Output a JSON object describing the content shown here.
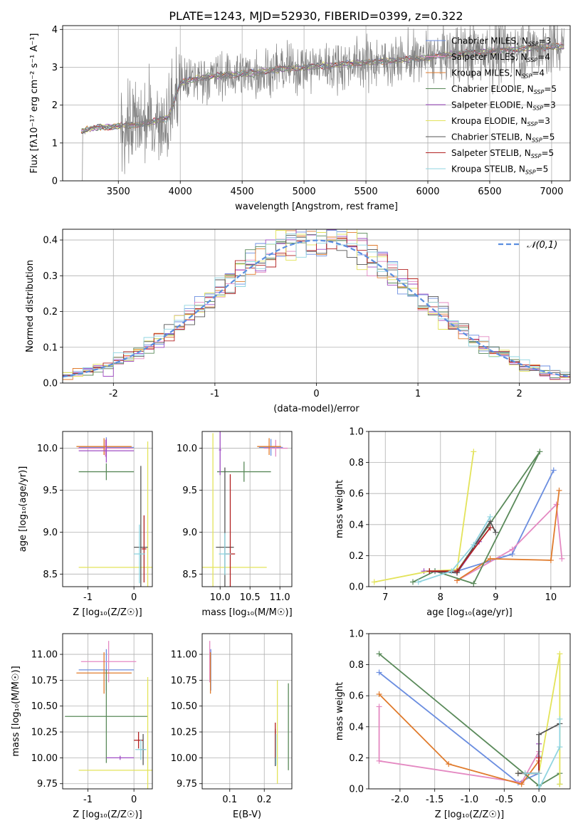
{
  "figure": {
    "title": "PLATE=1243, MJD=52930, FIBERID=0399, z=0.322",
    "models": [
      {
        "name": "Chabrier MILES, N_SSP=3",
        "color": "#6b8ee0"
      },
      {
        "name": "Salpeter MILES, N_SSP=4",
        "color": "#e489c2"
      },
      {
        "name": "Kroupa MILES, N_SSP=4",
        "color": "#e07b2c"
      },
      {
        "name": "Chabrier ELODIE, N_SSP=5",
        "color": "#5a8a5a"
      },
      {
        "name": "Salpeter ELODIE, N_SSP=3",
        "color": "#a04dc4"
      },
      {
        "name": "Kroupa ELODIE, N_SSP=3",
        "color": "#e3e35a"
      },
      {
        "name": "Chabrier STELIB, N_SSP=5",
        "color": "#555555"
      },
      {
        "name": "Salpeter STELIB, N_SSP=5",
        "color": "#b22222"
      },
      {
        "name": "Kroupa STELIB, N_SSP=5",
        "color": "#8fd4e0"
      }
    ]
  },
  "chart_data": [
    {
      "type": "line",
      "id": "spectrum",
      "xlabel": "wavelength [Angstrom, rest frame]",
      "ylabel": "Flux [fλ10⁻¹⁷ erg cm⁻² s⁻¹ A⁻¹]",
      "xlim": [
        3050,
        7150
      ],
      "ylim": [
        0,
        4.1
      ],
      "xticks": [
        3500,
        4000,
        4500,
        5000,
        5500,
        6000,
        6500,
        7000
      ],
      "yticks": [
        0,
        1,
        2,
        3,
        4
      ],
      "data_color": "#808080",
      "continuum": {
        "x": [
          3200,
          3300,
          3400,
          3500,
          3700,
          3900,
          4000,
          4200,
          4400,
          4600,
          4800,
          5000,
          5200,
          5400,
          5600,
          5800,
          6000,
          6200,
          6400,
          6600,
          6800,
          7000,
          7100
        ],
        "y": [
          1.3,
          1.4,
          1.42,
          1.45,
          1.5,
          1.65,
          2.6,
          2.75,
          2.8,
          2.85,
          2.95,
          3.0,
          3.05,
          3.1,
          3.15,
          3.2,
          3.25,
          3.35,
          3.4,
          3.45,
          3.5,
          3.55,
          3.55
        ]
      },
      "legend": "upper right"
    },
    {
      "type": "step",
      "id": "residuals",
      "xlabel": "(data-model)/error",
      "ylabel": "Normed distribution",
      "xlim": [
        -2.5,
        2.5
      ],
      "ylim": [
        0,
        0.43
      ],
      "xticks": [
        -2,
        -1,
        0,
        1,
        2
      ],
      "yticks": [
        0.0,
        0.1,
        0.2,
        0.3,
        0.4
      ],
      "reference": {
        "name": "𝒩(0,1)",
        "color": "#5b8ee0",
        "style": "dashed"
      },
      "bin_width": 0.1,
      "legend": "upper right"
    },
    {
      "type": "errorbar",
      "id": "age-vs-Z",
      "xlabel": "Z [log₁₀(Z/Z☉)]",
      "ylabel": "age  [log₁₀(age/yr)]",
      "xlim": [
        -1.55,
        0.4
      ],
      "ylim": [
        8.35,
        10.2
      ],
      "xticks": [
        -1,
        0
      ],
      "yticks": [
        8.5,
        9.0,
        9.5,
        10.0
      ],
      "points": [
        {
          "series": 0,
          "x": -0.6,
          "y": 10.01,
          "xerr": 0.6,
          "yerr": 0.12
        },
        {
          "series": 1,
          "x": -0.62,
          "y": 10.0,
          "xerr": 0.6,
          "yerr": 0.1
        },
        {
          "series": 2,
          "x": -0.65,
          "y": 10.02,
          "xerr": 0.6,
          "yerr": 0.1
        },
        {
          "series": 3,
          "x": -0.6,
          "y": 9.72,
          "xerr": 0.6,
          "yerr": 0.1
        },
        {
          "series": 4,
          "x": -0.6,
          "y": 9.97,
          "xerr": 0.6,
          "yerr": 0.14
        },
        {
          "series": 5,
          "x": 0.3,
          "y": 8.58,
          "xerr": 1.5,
          "yerr": 1.5
        },
        {
          "series": 6,
          "x": 0.15,
          "y": 8.82,
          "xerr": 0.15,
          "yerr": 0.97
        },
        {
          "series": 7,
          "x": 0.22,
          "y": 8.8,
          "xerr": 0.05,
          "yerr": 0.4
        },
        {
          "series": 8,
          "x": 0.12,
          "y": 8.74,
          "xerr": 0.12,
          "yerr": 0.35
        }
      ]
    },
    {
      "type": "errorbar",
      "id": "age-vs-mass",
      "xlabel": "mass [log₁₀(M/M☉)]",
      "ylabel": "",
      "xlim": [
        9.7,
        11.2
      ],
      "ylim": [
        8.35,
        10.2
      ],
      "xticks": [
        10.0,
        10.5,
        11.0
      ],
      "yticks": [
        8.5,
        9.0,
        9.5,
        10.0
      ],
      "points": [
        {
          "series": 0,
          "x": 10.85,
          "y": 10.01,
          "xerr": 0.2,
          "yerr": 0.1
        },
        {
          "series": 1,
          "x": 10.93,
          "y": 10.0,
          "xerr": 0.2,
          "yerr": 0.1
        },
        {
          "series": 2,
          "x": 10.82,
          "y": 10.02,
          "xerr": 0.2,
          "yerr": 0.1
        },
        {
          "series": 3,
          "x": 10.4,
          "y": 9.72,
          "xerr": 0.45,
          "yerr": 0.12
        },
        {
          "series": 4,
          "x": 10.0,
          "y": 9.98,
          "xerr": 0.02,
          "yerr": 0.3
        },
        {
          "series": 5,
          "x": 9.88,
          "y": 8.58,
          "xerr": 0.9,
          "yerr": 1.6
        },
        {
          "series": 6,
          "x": 10.08,
          "y": 8.82,
          "xerr": 0.15,
          "yerr": 0.95
        },
        {
          "series": 7,
          "x": 10.17,
          "y": 8.74,
          "xerr": 0.08,
          "yerr": 0.95
        },
        {
          "series": 8,
          "x": 10.08,
          "y": 8.74,
          "xerr": 0.1,
          "yerr": 0.25
        }
      ]
    },
    {
      "type": "line",
      "id": "mass-weight-vs-age",
      "xlabel": "age  [log₁₀(age/yr)]",
      "ylabel": "mass weight",
      "xlim": [
        6.7,
        10.35
      ],
      "ylim": [
        0,
        1
      ],
      "xticks": [
        7,
        8,
        9,
        10
      ],
      "yticks": [
        0.0,
        0.2,
        0.4,
        0.6,
        0.8,
        1.0
      ],
      "series": [
        {
          "index": 0,
          "x": [
            7.9,
            8.3,
            9.3,
            10.05
          ],
          "y": [
            0.1,
            0.1,
            0.21,
            0.75
          ]
        },
        {
          "index": 1,
          "x": [
            8.3,
            9.3,
            10.1,
            10.2
          ],
          "y": [
            0.04,
            0.24,
            0.53,
            0.18
          ]
        },
        {
          "index": 2,
          "x": [
            8.3,
            8.9,
            10.0,
            10.15
          ],
          "y": [
            0.04,
            0.18,
            0.17,
            0.62
          ]
        },
        {
          "index": 3,
          "x": [
            7.5,
            7.9,
            8.6,
            9.8,
            8.3
          ],
          "y": [
            0.03,
            0.1,
            0.02,
            0.87,
            0.1
          ]
        },
        {
          "index": 4,
          "x": [
            7.7,
            8.3,
            8.7
          ],
          "y": [
            0.1,
            0.09,
            0.29
          ]
        },
        {
          "index": 5,
          "x": [
            6.8,
            7.8,
            8.3,
            8.6
          ],
          "y": [
            0.03,
            0.1,
            0.11,
            0.87
          ]
        },
        {
          "index": 6,
          "x": [
            7.8,
            8.3,
            8.9,
            9.0
          ],
          "y": [
            0.1,
            0.09,
            0.42,
            0.35
          ]
        },
        {
          "index": 7,
          "x": [
            7.8,
            8.3,
            8.9
          ],
          "y": [
            0.1,
            0.1,
            0.38
          ]
        },
        {
          "index": 8,
          "x": [
            7.6,
            8.2,
            8.6,
            8.9
          ],
          "y": [
            0.03,
            0.1,
            0.27,
            0.45
          ]
        }
      ]
    },
    {
      "type": "errorbar",
      "id": "mass-vs-Z",
      "xlabel": "Z [log₁₀(Z/Z☉)]",
      "ylabel": "mass [log₁₀(M/M☉)]",
      "xlim": [
        -1.55,
        0.4
      ],
      "ylim": [
        9.7,
        11.2
      ],
      "xticks": [
        -1,
        0
      ],
      "yticks": [
        9.75,
        10.0,
        10.25,
        10.5,
        10.75,
        11.0
      ],
      "points": [
        {
          "series": 0,
          "x": -0.6,
          "y": 10.85,
          "xerr": 0.6,
          "yerr": 0.2
        },
        {
          "series": 1,
          "x": -0.55,
          "y": 10.93,
          "xerr": 0.6,
          "yerr": 0.2
        },
        {
          "series": 2,
          "x": -0.65,
          "y": 10.82,
          "xerr": 0.6,
          "yerr": 0.2
        },
        {
          "series": 3,
          "x": -0.6,
          "y": 10.4,
          "xerr": 0.9,
          "yerr": 0.45
        },
        {
          "series": 4,
          "x": -0.3,
          "y": 10.0,
          "xerr": 0.3,
          "yerr": 0.02
        },
        {
          "series": 5,
          "x": 0.3,
          "y": 9.88,
          "xerr": 1.5,
          "yerr": 0.9
        },
        {
          "series": 6,
          "x": 0.2,
          "y": 10.08,
          "xerr": 0.05,
          "yerr": 0.15
        },
        {
          "series": 7,
          "x": 0.1,
          "y": 10.17,
          "xerr": 0.1,
          "yerr": 0.08
        },
        {
          "series": 8,
          "x": 0.15,
          "y": 10.08,
          "xerr": 0.12,
          "yerr": 0.1
        }
      ]
    },
    {
      "type": "errorbar",
      "id": "mass-vs-ebv",
      "xlabel": "E(B-V)",
      "ylabel": "",
      "xlim": [
        0.02,
        0.28
      ],
      "ylim": [
        9.7,
        11.2
      ],
      "xticks": [
        0.1,
        0.2
      ],
      "yticks": [
        9.75,
        10.0,
        10.25,
        10.5,
        10.75,
        11.0
      ],
      "points": [
        {
          "series": 0,
          "x": 0.045,
          "y": 10.85,
          "xerr": 0,
          "yerr": 0.2
        },
        {
          "series": 1,
          "x": 0.042,
          "y": 10.93,
          "xerr": 0,
          "yerr": 0.2
        },
        {
          "series": 2,
          "x": 0.044,
          "y": 10.82,
          "xerr": 0,
          "yerr": 0.2
        },
        {
          "series": 3,
          "x": 0.27,
          "y": 10.3,
          "xerr": 0,
          "yerr": 0.42
        },
        {
          "series": 4,
          "x": 0.232,
          "y": 10.0,
          "xerr": 0,
          "yerr": 0.08
        },
        {
          "series": 5,
          "x": 0.238,
          "y": 10.25,
          "xerr": 0,
          "yerr": 0.5
        },
        {
          "series": 6,
          "x": 0.232,
          "y": 10.1,
          "xerr": 0,
          "yerr": 0.18
        },
        {
          "series": 7,
          "x": 0.232,
          "y": 10.17,
          "xerr": 0,
          "yerr": 0.17
        },
        {
          "series": 8,
          "x": 0.234,
          "y": 10.08,
          "xerr": 0,
          "yerr": 0.15
        }
      ]
    },
    {
      "type": "line",
      "id": "mass-weight-vs-Z",
      "xlabel": "Z [log₁₀(Z/Z☉)]",
      "ylabel": "mass weight",
      "xlim": [
        -2.45,
        0.45
      ],
      "ylim": [
        0,
        1
      ],
      "xticks": [
        -2.0,
        -1.5,
        -1.0,
        -0.5,
        0.0
      ],
      "yticks": [
        0.0,
        0.2,
        0.4,
        0.6,
        0.8,
        1.0
      ],
      "series": [
        {
          "index": 0,
          "x": [
            -2.3,
            -0.3,
            0.0,
            0.0
          ],
          "y": [
            0.75,
            0.04,
            0.1,
            0.21
          ]
        },
        {
          "index": 1,
          "x": [
            -2.3,
            -2.3,
            -0.25,
            0.0
          ],
          "y": [
            0.53,
            0.18,
            0.04,
            0.24
          ]
        },
        {
          "index": 2,
          "x": [
            -2.3,
            -1.3,
            -0.25,
            0.0
          ],
          "y": [
            0.61,
            0.16,
            0.03,
            0.18
          ]
        },
        {
          "index": 3,
          "x": [
            -2.3,
            0.0,
            0.3,
            0.3
          ],
          "y": [
            0.87,
            0.02,
            0.1,
            0.03
          ]
        },
        {
          "index": 4,
          "x": [
            -0.3,
            0.0,
            0.0
          ],
          "y": [
            0.1,
            0.1,
            0.29
          ]
        },
        {
          "index": 5,
          "x": [
            -0.3,
            0.0,
            0.3,
            0.3
          ],
          "y": [
            0.1,
            0.1,
            0.87,
            0.03
          ]
        },
        {
          "index": 6,
          "x": [
            -0.3,
            0.0,
            0.0,
            0.3
          ],
          "y": [
            0.1,
            0.1,
            0.35,
            0.42
          ]
        },
        {
          "index": 7,
          "x": [
            -0.2,
            0.0,
            0.0
          ],
          "y": [
            0.1,
            0.1,
            0.2
          ]
        },
        {
          "index": 8,
          "x": [
            -0.2,
            0.0,
            0.0,
            0.3,
            0.3
          ],
          "y": [
            0.1,
            0.1,
            0.0,
            0.27,
            0.45
          ]
        }
      ]
    }
  ]
}
